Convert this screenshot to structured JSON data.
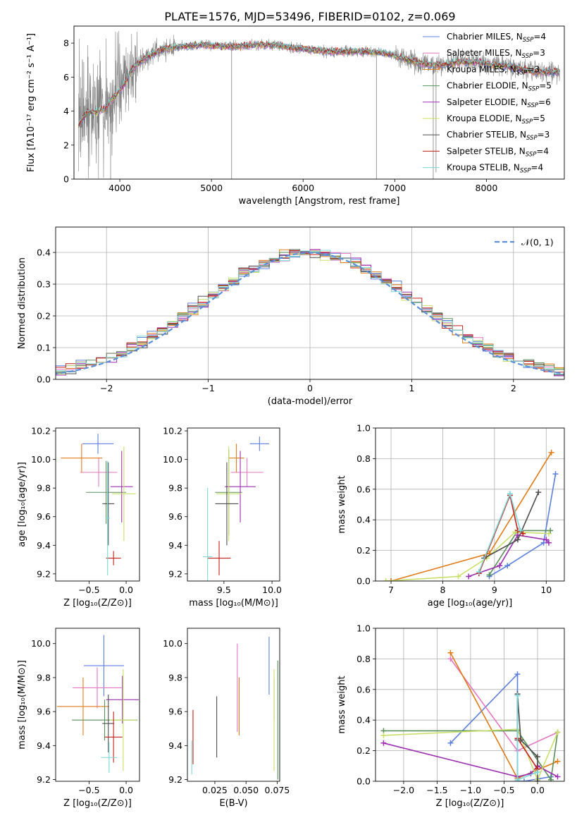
{
  "title": "PLATE=1576, MJD=53496, FIBERID=0102, z=0.069",
  "colors": [
    "#5b7fdc",
    "#e377c2",
    "#e07b18",
    "#5a8f5a",
    "#9c2fb0",
    "#c8e06a",
    "#4d4d4d",
    "#c4201a",
    "#7dd8d8"
  ],
  "legend_spectrum": [
    {
      "name": "Chabrier MILES, N",
      "sub": "SSP",
      "val": "=4"
    },
    {
      "name": "Salpeter MILES, N",
      "sub": "SSP",
      "val": "=3"
    },
    {
      "name": "Kroupa MILES, N",
      "sub": "SSP",
      "val": "=3"
    },
    {
      "name": "Chabrier ELODIE, N",
      "sub": "SSP",
      "val": "=5"
    },
    {
      "name": "Salpeter ELODIE, N",
      "sub": "SSP",
      "val": "=6"
    },
    {
      "name": "Kroupa ELODIE, N",
      "sub": "SSP",
      "val": "=5"
    },
    {
      "name": "Chabrier STELIB, N",
      "sub": "SSP",
      "val": "=3"
    },
    {
      "name": "Salpeter STELIB, N",
      "sub": "SSP",
      "val": "=4"
    },
    {
      "name": "Kroupa STELIB, N",
      "sub": "SSP",
      "val": "=4"
    }
  ],
  "legend_hist": "𝒩(0, 1)",
  "chart_data": [
    {
      "id": "spectrum",
      "type": "line",
      "xlabel": "wavelength [Angstrom, rest frame]",
      "ylabel": "Flux [fλ10⁻¹⁷ erg cm⁻² s⁻¹ A⁻¹]",
      "xlim": [
        3500,
        8850
      ],
      "ylim": [
        0,
        9
      ],
      "xticks": [
        4000,
        5000,
        6000,
        7000,
        8000
      ],
      "yticks": [
        0,
        2,
        4,
        6,
        8
      ],
      "xticklabels": [
        "4000",
        "5000",
        "6000",
        "7000",
        "8000"
      ],
      "yticklabels": [
        "0",
        "2",
        "4",
        "6",
        "8"
      ],
      "model_continuum": {
        "x": [
          3550,
          3650,
          3750,
          3850,
          3950,
          4050,
          4150,
          4300,
          4500,
          4700,
          4900,
          5100,
          5300,
          5500,
          5700,
          5900,
          6100,
          6300,
          6500,
          6700,
          6900,
          7100,
          7300,
          7500,
          7700,
          7900,
          8100,
          8300,
          8500,
          8700
        ],
        "y": [
          3.2,
          4.0,
          3.9,
          4.2,
          4.9,
          5.6,
          6.6,
          7.2,
          7.7,
          7.8,
          7.9,
          7.8,
          7.8,
          7.9,
          7.9,
          7.7,
          7.6,
          7.5,
          7.5,
          7.5,
          7.4,
          7.1,
          6.8,
          6.7,
          6.9,
          6.9,
          6.7,
          6.6,
          6.3,
          6.3
        ]
      }
    },
    {
      "id": "residuals",
      "type": "histogram",
      "xlabel": "(data-model)/error",
      "ylabel": "Normed distribution",
      "xlim": [
        -2.5,
        2.5
      ],
      "ylim": [
        0,
        0.48
      ],
      "xticks": [
        -2,
        -1,
        0,
        1,
        2
      ],
      "xticklabels": [
        "−2",
        "−1",
        "0",
        "1",
        "2"
      ],
      "yticks": [
        0,
        0.1,
        0.2,
        0.3,
        0.4
      ],
      "yticklabels": [
        "0.0",
        "0.1",
        "0.2",
        "0.3",
        "0.4"
      ],
      "bin_width": 0.1,
      "grid": true,
      "legend_position": "top-right"
    },
    {
      "id": "age_vs_Z",
      "type": "scatter",
      "error_bars": true,
      "xlabel": "Z [log₁₀(Z/Z⊙)]",
      "ylabel": "age [log₁₀(age/yr)]",
      "xlim": [
        -0.95,
        0.18
      ],
      "ylim": [
        9.15,
        10.22
      ],
      "xticks": [
        -0.5,
        0.0
      ],
      "xticklabels": [
        "−0.5",
        "0.0"
      ],
      "yticks": [
        9.2,
        9.4,
        9.6,
        9.8,
        10.0,
        10.2
      ],
      "yticklabels": [
        "9.2",
        "9.4",
        "9.6",
        "9.8",
        "10.0",
        "10.2"
      ],
      "points": [
        {
          "x": -0.38,
          "y": 10.11,
          "xerr": 0.21,
          "yerr": 0.07
        },
        {
          "x": -0.37,
          "y": 9.91,
          "xerr": 0.25,
          "yerr": 0.1
        },
        {
          "x": -0.6,
          "y": 10.01,
          "xerr": 0.28,
          "yerr": 0.1
        },
        {
          "x": -0.27,
          "y": 9.77,
          "xerr": 0.27,
          "yerr": 0.22
        },
        {
          "x": -0.06,
          "y": 9.81,
          "xerr": 0.15,
          "yerr": 0.25
        },
        {
          "x": -0.03,
          "y": 9.76,
          "xerr": 0.16,
          "yerr": 0.33
        },
        {
          "x": -0.24,
          "y": 9.69,
          "xerr": 0.08,
          "yerr": 0.29
        },
        {
          "x": -0.17,
          "y": 9.31,
          "xerr": 0.1,
          "yerr": 0.05
        },
        {
          "x": -0.25,
          "y": 9.59,
          "xerr": 0.03,
          "yerr": 0.4
        }
      ]
    },
    {
      "id": "age_vs_mass",
      "type": "scatter",
      "error_bars": true,
      "xlabel": "mass [log₁₀(M/M⊙)]",
      "xlim": [
        9.12,
        10.08
      ],
      "ylim": [
        9.15,
        10.22
      ],
      "xticks": [
        9.5,
        10.0
      ],
      "xticklabels": [
        "9.5",
        "10.0"
      ],
      "yticks": [
        9.2,
        9.4,
        9.6,
        9.8,
        10.0,
        10.2
      ],
      "yticklabels": [
        "9.2",
        "9.4",
        "9.6",
        "9.8",
        "10.0",
        "10.2"
      ],
      "points": [
        {
          "x": 9.87,
          "y": 10.11,
          "xerr": 0.1,
          "yerr": 0.05
        },
        {
          "x": 9.74,
          "y": 9.91,
          "xerr": 0.17,
          "yerr": 0.1
        },
        {
          "x": 9.63,
          "y": 10.01,
          "xerr": 0.08,
          "yerr": 0.1
        },
        {
          "x": 9.55,
          "y": 9.77,
          "xerr": 0.14,
          "yerr": 0.3
        },
        {
          "x": 9.67,
          "y": 9.81,
          "xerr": 0.16,
          "yerr": 0.25
        },
        {
          "x": 9.55,
          "y": 9.76,
          "xerr": 0.13,
          "yerr": 0.33
        },
        {
          "x": 9.53,
          "y": 9.69,
          "xerr": 0.12,
          "yerr": 0.29
        },
        {
          "x": 9.45,
          "y": 9.31,
          "xerr": 0.12,
          "yerr": 0.12
        },
        {
          "x": 9.33,
          "y": 9.32,
          "xerr": 0.05,
          "yerr": 0.48
        }
      ]
    },
    {
      "id": "weight_vs_age",
      "type": "line",
      "markers": "+",
      "xlabel": "age [log₁₀(age/yr)]",
      "ylabel": "mass weight",
      "xlim": [
        6.7,
        10.35
      ],
      "ylim": [
        0,
        1.0
      ],
      "xticks": [
        7,
        8,
        9,
        10
      ],
      "xticklabels": [
        "7",
        "8",
        "9",
        "10"
      ],
      "yticks": [
        0,
        0.2,
        0.4,
        0.6,
        0.8,
        1.0
      ],
      "yticklabels": [
        "0.0",
        "0.2",
        "0.4",
        "0.6",
        "0.8",
        "1.0"
      ],
      "grid": true,
      "series": [
        {
          "x": [
            8.9,
            9.25,
            9.95,
            10.18
          ],
          "y": [
            0.03,
            0.1,
            0.25,
            0.7
          ]
        },
        {
          "x": 7.0,
          "y": 0
        },
        {
          "x": [
            7.0,
            8.9,
            10.1
          ],
          "y": [
            0.0,
            0.18,
            0.84
          ]
        },
        {
          "x": [
            8.9,
            9.45,
            10.08
          ],
          "y": [
            0.04,
            0.33,
            0.33
          ]
        },
        {
          "x": [
            8.5,
            9.1,
            9.45,
            10.0,
            10.05
          ],
          "y": [
            0.03,
            0.1,
            0.3,
            0.27,
            0.25
          ]
        },
        {
          "x": [
            6.9,
            8.3,
            8.85,
            9.4,
            10.05
          ],
          "y": [
            0.0,
            0.03,
            0.15,
            0.32,
            0.31
          ]
        },
        {
          "x": [
            8.8,
            9.45,
            9.85
          ],
          "y": [
            0.15,
            0.27,
            0.58
          ]
        },
        {
          "x": [
            8.7,
            9.3,
            9.45,
            9.55
          ],
          "y": [
            0.05,
            0.56,
            0.33,
            0.31
          ]
        },
        {
          "x": [
            8.7,
            9.3,
            9.5
          ],
          "y": [
            0.06,
            0.57,
            0.33
          ]
        }
      ]
    },
    {
      "id": "mass_vs_Z",
      "type": "scatter",
      "error_bars": true,
      "xlabel": "Z [log₁₀(Z/Z⊙)]",
      "ylabel": "mass [log₁₀(M/M⊙)]",
      "xlim": [
        -0.95,
        0.18
      ],
      "ylim": [
        9.19,
        10.09
      ],
      "xticks": [
        -0.5,
        0.0
      ],
      "xticklabels": [
        "−0.5",
        "0.0"
      ],
      "yticks": [
        9.2,
        9.4,
        9.6,
        9.8,
        10.0
      ],
      "yticklabels": [
        "9.2",
        "9.4",
        "9.6",
        "9.8",
        "10.0"
      ],
      "points": [
        {
          "x": -0.3,
          "y": 9.87,
          "xerr": 0.27,
          "yerr": 0.18
        },
        {
          "x": -0.39,
          "y": 9.74,
          "xerr": 0.33,
          "yerr": 0.12
        },
        {
          "x": -0.58,
          "y": 9.63,
          "xerr": 0.35,
          "yerr": 0.17
        },
        {
          "x": -0.29,
          "y": 9.55,
          "xerr": 0.44,
          "yerr": 0.12
        },
        {
          "x": -0.05,
          "y": 9.67,
          "xerr": 0.22,
          "yerr": 0.14
        },
        {
          "x": -0.04,
          "y": 9.55,
          "xerr": 0.18,
          "yerr": 0.3
        },
        {
          "x": -0.24,
          "y": 9.53,
          "xerr": 0.08,
          "yerr": 0.17
        },
        {
          "x": -0.17,
          "y": 9.45,
          "xerr": 0.12,
          "yerr": 0.15
        },
        {
          "x": -0.23,
          "y": 9.33,
          "xerr": 0.11,
          "yerr": 0.09
        }
      ]
    },
    {
      "id": "mass_vs_ebv",
      "type": "errorbar",
      "xlabel": "E(B-V)",
      "xlim": [
        0.003,
        0.077
      ],
      "ylim": [
        9.19,
        10.09
      ],
      "xticks": [
        0.025,
        0.05,
        0.075
      ],
      "xticklabels": [
        "0.025",
        "0.050",
        "0.075"
      ],
      "yticks": [
        9.2,
        9.4,
        9.6,
        9.8,
        10.0
      ],
      "yticklabels": [
        "9.2",
        "9.4",
        "9.6",
        "9.8",
        "10.0"
      ],
      "points": [
        {
          "x": 0.0685,
          "y": 9.87,
          "yerr": 0.17
        },
        {
          "x": 0.043,
          "y": 9.74,
          "yerr": 0.26
        },
        {
          "x": 0.0445,
          "y": 9.63,
          "yerr": 0.17
        },
        {
          "x": 0.0755,
          "y": 9.55,
          "yerr": 0.35
        },
        {
          "x": 0.0725,
          "y": 9.67,
          "yerr": 0.12
        },
        {
          "x": 0.0725,
          "y": 9.55,
          "yerr": 0.3
        },
        {
          "x": 0.0265,
          "y": 9.51,
          "yerr": 0.18
        },
        {
          "x": 0.0075,
          "y": 9.45,
          "yerr": 0.16
        },
        {
          "x": 0.0065,
          "y": 9.33,
          "yerr": 0.1
        }
      ]
    },
    {
      "id": "weight_vs_Z",
      "type": "line",
      "markers": "+",
      "xlabel": "Z [log₁₀(Z/Z⊙)]",
      "ylabel": "mass weight",
      "xlim": [
        -2.42,
        0.4
      ],
      "ylim": [
        0,
        1.0
      ],
      "xticks": [
        -2.0,
        -1.5,
        -1.0,
        -0.5,
        0.0
      ],
      "xticklabels": [
        "−2.0",
        "−1.5",
        "−1.0",
        "−0.5",
        "0.0"
      ],
      "yticks": [
        0,
        0.2,
        0.4,
        0.6,
        0.8,
        1.0
      ],
      "yticklabels": [
        "0.0",
        "0.2",
        "0.4",
        "0.6",
        "0.8",
        "1.0"
      ],
      "grid": true,
      "series": [
        {
          "x": [
            -1.3,
            -0.3,
            -0.3,
            -0.2,
            0.2
          ],
          "y": [
            0.25,
            0.7,
            0.0,
            0.0,
            0.03
          ]
        },
        {
          "x": [
            -1.3,
            -0.3,
            0.3
          ],
          "y": [
            0.8,
            0.2,
            0.32
          ]
        },
        {
          "x": [
            -1.3,
            -0.3,
            0.3
          ],
          "y": [
            0.84,
            0.02,
            0.13
          ]
        },
        {
          "x": [
            -2.3,
            -0.3,
            0.2,
            0.3
          ],
          "y": [
            0.33,
            0.33,
            0.01,
            0.32
          ]
        },
        {
          "x": [
            -2.3,
            -0.3,
            -0.1,
            0.0,
            0.3
          ],
          "y": [
            0.25,
            0.03,
            0.05,
            0.1,
            0.03
          ]
        },
        {
          "x": [
            -2.3,
            -0.3,
            0.0,
            0.3
          ],
          "y": [
            0.3,
            0.34,
            0.01,
            0.32
          ]
        },
        {
          "x": [
            -0.3,
            -0.3,
            -0.25,
            0.0,
            0.0
          ],
          "y": [
            0.27,
            0.57,
            0.27,
            0.16,
            0.0
          ]
        },
        {
          "x": [
            -0.3,
            0.0
          ],
          "y": [
            0.28,
            0.08
          ]
        },
        {
          "x": [
            -0.3,
            -0.3,
            0.0
          ],
          "y": [
            0.56,
            0.01,
            0.06
          ]
        }
      ]
    }
  ]
}
